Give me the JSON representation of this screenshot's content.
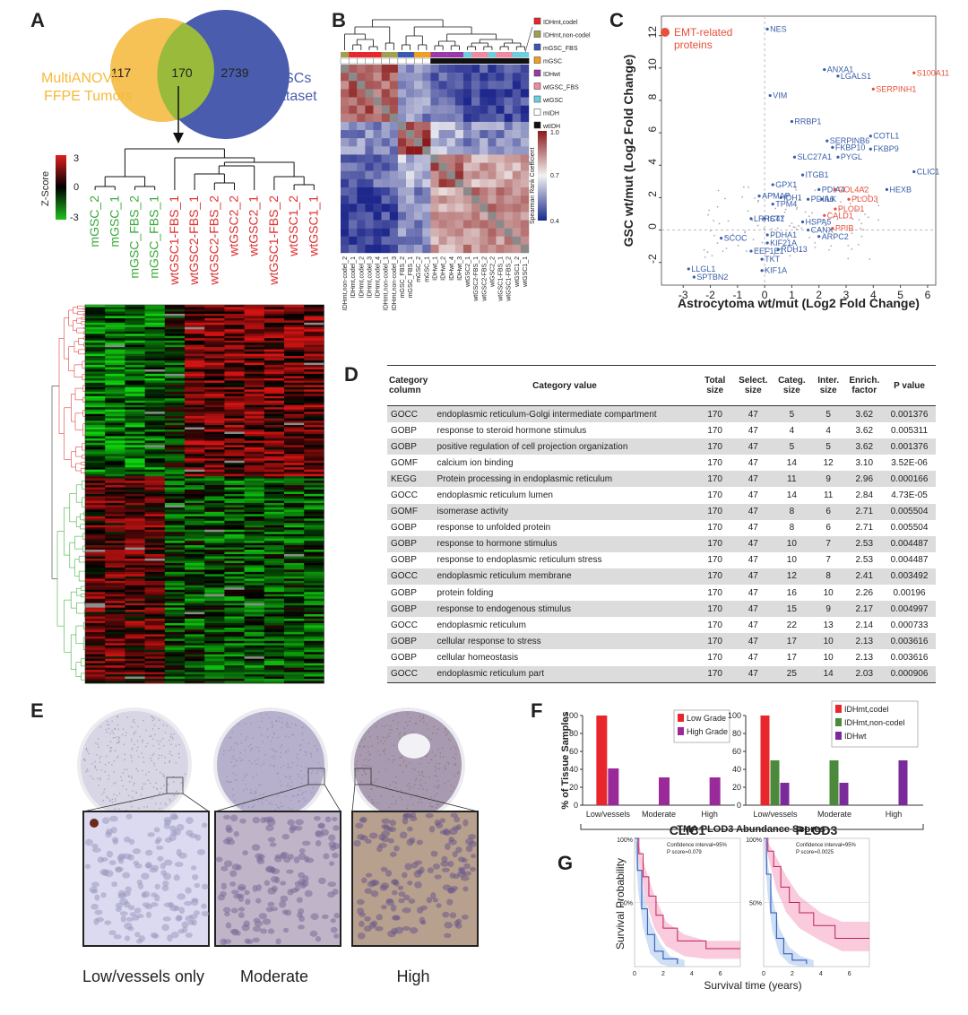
{
  "panel_labels": [
    "A",
    "B",
    "C",
    "D",
    "E",
    "F",
    "G"
  ],
  "venn": {
    "left_label": [
      "MultiANOVA",
      "FFPE Tumors"
    ],
    "right_label": [
      "GSCs",
      "Dataset"
    ],
    "left_only": "117",
    "overlap": "170",
    "right_only": "2739",
    "left_color": "#f6c155",
    "right_color": "#4a5cae",
    "overlap_color": "#9aba3c"
  },
  "zscore": {
    "title": "Z-Score",
    "ticks": [
      "3",
      "0",
      "-3"
    ]
  },
  "heatmap_columns": [
    {
      "label": "mGSC_2",
      "color": "#3aaa3a"
    },
    {
      "label": "mGSC_1",
      "color": "#3aaa3a"
    },
    {
      "label": "mGSC_FBS_2",
      "color": "#3aaa3a"
    },
    {
      "label": "mGSC_FBS_1",
      "color": "#3aaa3a"
    },
    {
      "label": "wtGSC1-FBS_1",
      "color": "#e03030"
    },
    {
      "label": "wtGSC2-FBS_1",
      "color": "#e03030"
    },
    {
      "label": "wtGSC2-FBS_2",
      "color": "#e03030"
    },
    {
      "label": "wtGSC2_2",
      "color": "#e03030"
    },
    {
      "label": "wtGSC2_1",
      "color": "#e03030"
    },
    {
      "label": "wtGSC1-FBS_2",
      "color": "#e03030"
    },
    {
      "label": "wtGSC1_2",
      "color": "#e03030"
    },
    {
      "label": "wtGSC1_1",
      "color": "#e03030"
    }
  ],
  "panelB": {
    "legend": [
      {
        "label": "IDHmt,codel",
        "color": "#e8262c"
      },
      {
        "label": "IDHmt,non-codel",
        "color": "#a0a050"
      },
      {
        "label": "mGSC_FBS",
        "color": "#3a58b0"
      },
      {
        "label": "mGSC",
        "color": "#f0a020"
      },
      {
        "label": "IDHwt",
        "color": "#9a3aa8"
      },
      {
        "label": "wtGSC_FBS",
        "color": "#f08aa0"
      },
      {
        "label": "wtGSC",
        "color": "#6ad0e0"
      },
      {
        "label": "mIDH",
        "color": "#ffffff"
      },
      {
        "label": "wtIDH",
        "color": "#111111"
      }
    ],
    "colorbar_title": "Spearman Rank Coefficient",
    "colorbar_ticks": [
      "1.0",
      "0.7",
      "0.4"
    ],
    "labels": [
      "IDHmt,non-codel_2",
      "IDHmt,codel_1",
      "IDHmt,codel_2",
      "IDHmt,codel_3",
      "IDHmt,codel_4",
      "IDHmt,non-codel_1",
      "IDHmt,non-codel_3",
      "mGSC_FBS_2",
      "mGSC_FBS_1",
      "mGSC_2",
      "mGSC_1",
      "IDHwt_1",
      "IDHwt_2",
      "IDHwt_4",
      "IDHwt_3",
      "wtGSC2_1",
      "wtGSC2-FBS_1",
      "wtGSC2-FBS_2",
      "wtGSC2_2",
      "wtGSC1-FBS_1",
      "wtGSC1-FBS_2",
      "wtGSC1_2",
      "wtGSC1_1"
    ]
  },
  "panelC": {
    "legend": "EMT-related proteins",
    "xlabel": "Astrocytoma wt/mut (Log2 Fold Change)",
    "ylabel": "GSC wt/mut (Log2 Fold Change)",
    "xticks": [
      "-3",
      "-2",
      "-1",
      "0",
      "1",
      "2",
      "3",
      "4",
      "5",
      "6"
    ],
    "yticks": [
      "12",
      "10",
      "8",
      "6",
      "4",
      "2",
      "0",
      "-2"
    ],
    "points": [
      {
        "label": "NES",
        "x": 0.1,
        "y": 12.4,
        "color": "#3a5ea8"
      },
      {
        "label": "ANXA1",
        "x": 2.2,
        "y": 9.9,
        "color": "#3a5ea8"
      },
      {
        "label": "LGALS1",
        "x": 2.7,
        "y": 9.5,
        "color": "#3a5ea8"
      },
      {
        "label": "S100A11",
        "x": 5.5,
        "y": 9.7,
        "color": "#e8503a"
      },
      {
        "label": "SERPINH1",
        "x": 4.0,
        "y": 8.7,
        "color": "#e8503a"
      },
      {
        "label": "VIM",
        "x": 0.2,
        "y": 8.3,
        "color": "#3a5ea8"
      },
      {
        "label": "RRBP1",
        "x": 1.0,
        "y": 6.7,
        "color": "#3a5ea8"
      },
      {
        "label": "COTL1",
        "x": 3.9,
        "y": 5.8,
        "color": "#3a5ea8"
      },
      {
        "label": "SERPINB6",
        "x": 2.3,
        "y": 5.5,
        "color": "#3a5ea8"
      },
      {
        "label": "FKBP10",
        "x": 2.5,
        "y": 5.1,
        "color": "#3a5ea8"
      },
      {
        "label": "FKBP9",
        "x": 3.9,
        "y": 5.0,
        "color": "#3a5ea8"
      },
      {
        "label": "SLC27A1",
        "x": 1.1,
        "y": 4.5,
        "color": "#3a5ea8"
      },
      {
        "label": "PYGL",
        "x": 2.7,
        "y": 4.5,
        "color": "#3a5ea8"
      },
      {
        "label": "CLIC1",
        "x": 5.5,
        "y": 3.6,
        "color": "#3a5ea8"
      },
      {
        "label": "ITGB1",
        "x": 1.4,
        "y": 3.4,
        "color": "#3a5ea8"
      },
      {
        "label": "GPX1",
        "x": 0.3,
        "y": 2.8,
        "color": "#3a5ea8"
      },
      {
        "label": "PDIA4",
        "x": 2.0,
        "y": 2.5,
        "color": "#3a5ea8"
      },
      {
        "label": "HEXB",
        "x": 4.5,
        "y": 2.5,
        "color": "#3a5ea8"
      },
      {
        "label": "COL4A2",
        "x": 2.6,
        "y": 2.5,
        "color": "#e8503a"
      },
      {
        "label": "APMAP",
        "x": -0.2,
        "y": 2.1,
        "color": "#3a5ea8"
      },
      {
        "label": "IDH1",
        "x": 0.6,
        "y": 2.0,
        "color": "#3a5ea8"
      },
      {
        "label": "PDIA6",
        "x": 1.6,
        "y": 1.9,
        "color": "#3a5ea8"
      },
      {
        "label": "ILK",
        "x": 2.1,
        "y": 1.9,
        "color": "#3a5ea8"
      },
      {
        "label": "PLOD3",
        "x": 3.1,
        "y": 1.9,
        "color": "#e8503a"
      },
      {
        "label": "TPM4",
        "x": 0.3,
        "y": 1.6,
        "color": "#3a5ea8"
      },
      {
        "label": "PLOD1",
        "x": 2.6,
        "y": 1.3,
        "color": "#e8503a"
      },
      {
        "label": "CALD1",
        "x": 2.2,
        "y": 0.9,
        "color": "#e8503a"
      },
      {
        "label": "LRRC47",
        "x": -0.5,
        "y": 0.7,
        "color": "#3a5ea8"
      },
      {
        "label": "IST1",
        "x": 0.0,
        "y": 0.7,
        "color": "#3a5ea8"
      },
      {
        "label": "HSPA5",
        "x": 1.4,
        "y": 0.5,
        "color": "#3a5ea8"
      },
      {
        "label": "CANX",
        "x": 1.6,
        "y": 0.0,
        "color": "#3a5ea8"
      },
      {
        "label": "PPIB",
        "x": 2.5,
        "y": 0.1,
        "color": "#e8503a"
      },
      {
        "label": "PDHA1",
        "x": 0.1,
        "y": -0.3,
        "color": "#3a5ea8"
      },
      {
        "label": "ARPC2",
        "x": 2.0,
        "y": -0.4,
        "color": "#3a5ea8"
      },
      {
        "label": "SCOC",
        "x": -1.6,
        "y": -0.5,
        "color": "#3a5ea8"
      },
      {
        "label": "KIF21A",
        "x": 0.1,
        "y": -0.8,
        "color": "#3a5ea8"
      },
      {
        "label": "EEF1E1",
        "x": -0.5,
        "y": -1.3,
        "color": "#3a5ea8"
      },
      {
        "label": "RDH13",
        "x": 0.5,
        "y": -1.2,
        "color": "#3a5ea8"
      },
      {
        "label": "TKT",
        "x": -0.1,
        "y": -1.8,
        "color": "#3a5ea8"
      },
      {
        "label": "LLGL1",
        "x": -2.8,
        "y": -2.4,
        "color": "#3a5ea8"
      },
      {
        "label": "KIF1A",
        "x": -0.1,
        "y": -2.5,
        "color": "#3a5ea8"
      },
      {
        "label": "SPTBN2",
        "x": -2.6,
        "y": -2.9,
        "color": "#3a5ea8"
      }
    ]
  },
  "panelD": {
    "headers": [
      "Category column",
      "Category value",
      "Total size",
      "Select. size",
      "Categ. size",
      "Inter. size",
      "Enrich. factor",
      "P value"
    ],
    "rows": [
      [
        "GOCC",
        "endoplasmic reticulum-Golgi intermediate compartment",
        "170",
        "47",
        "5",
        "5",
        "3.62",
        "0.001376"
      ],
      [
        "GOBP",
        "response to steroid hormone stimulus",
        "170",
        "47",
        "4",
        "4",
        "3.62",
        "0.005311"
      ],
      [
        "GOBP",
        "positive regulation of cell projection organization",
        "170",
        "47",
        "5",
        "5",
        "3.62",
        "0.001376"
      ],
      [
        "GOMF",
        "calcium ion binding",
        "170",
        "47",
        "14",
        "12",
        "3.10",
        "3.52E-06"
      ],
      [
        "KEGG",
        "Protein processing in endoplasmic reticulum",
        "170",
        "47",
        "11",
        "9",
        "2.96",
        "0.000166"
      ],
      [
        "GOCC",
        "endoplasmic reticulum lumen",
        "170",
        "47",
        "14",
        "11",
        "2.84",
        "4.73E-05"
      ],
      [
        "GOMF",
        "isomerase activity",
        "170",
        "47",
        "8",
        "6",
        "2.71",
        "0.005504"
      ],
      [
        "GOBP",
        "response to unfolded protein",
        "170",
        "47",
        "8",
        "6",
        "2.71",
        "0.005504"
      ],
      [
        "GOBP",
        "response to hormone stimulus",
        "170",
        "47",
        "10",
        "7",
        "2.53",
        "0.004487"
      ],
      [
        "GOBP",
        "response to endoplasmic reticulum stress",
        "170",
        "47",
        "10",
        "7",
        "2.53",
        "0.004487"
      ],
      [
        "GOCC",
        "endoplasmic reticulum membrane",
        "170",
        "47",
        "12",
        "8",
        "2.41",
        "0.003492"
      ],
      [
        "GOBP",
        "protein folding",
        "170",
        "47",
        "16",
        "10",
        "2.26",
        "0.00196"
      ],
      [
        "GOBP",
        "response to endogenous stimulus",
        "170",
        "47",
        "15",
        "9",
        "2.17",
        "0.004997"
      ],
      [
        "GOCC",
        "endoplasmic reticulum",
        "170",
        "47",
        "22",
        "13",
        "2.14",
        "0.000733"
      ],
      [
        "GOBP",
        "cellular response to stress",
        "170",
        "47",
        "17",
        "10",
        "2.13",
        "0.003616"
      ],
      [
        "GOBP",
        "cellular homeostasis",
        "170",
        "47",
        "17",
        "10",
        "2.13",
        "0.003616"
      ],
      [
        "GOCC",
        "endoplasmic reticulum part",
        "170",
        "47",
        "25",
        "14",
        "2.03",
        "0.000906"
      ]
    ]
  },
  "panelE": {
    "labels": [
      "Low/vessels only",
      "Moderate",
      "High"
    ]
  },
  "chart_data": [
    {
      "type": "bar",
      "ylabel": "% of Tissue Samples",
      "xlabel": "TMA PLOD3 Abundance Scores",
      "categories": [
        "Low/vessels",
        "Moderate",
        "High"
      ],
      "ylim": [
        0,
        100
      ],
      "yticks": [
        "0",
        "20",
        "40",
        "60",
        "80",
        "100"
      ],
      "series": [
        {
          "name": "Low Grade",
          "color": "#e8262c",
          "values": [
            100,
            0,
            0
          ]
        },
        {
          "name": "High Grade",
          "color": "#9a2a9a",
          "values": [
            41,
            31,
            31
          ]
        }
      ]
    },
    {
      "type": "bar",
      "categories": [
        "Low/vessels",
        "Moderate",
        "High"
      ],
      "ylim": [
        0,
        100
      ],
      "yticks": [
        "0",
        "20",
        "40",
        "60",
        "80",
        "100"
      ],
      "series": [
        {
          "name": "IDHmt,codel",
          "color": "#e8262c",
          "values": [
            100,
            0,
            0
          ]
        },
        {
          "name": "IDHmt,non-codel",
          "color": "#4a8a3a",
          "values": [
            50,
            50,
            0
          ]
        },
        {
          "name": "IDHwt",
          "color": "#7a2a9a",
          "values": [
            25,
            25,
            50
          ]
        }
      ]
    },
    {
      "type": "line",
      "title": "CLIC1",
      "note1": "Confidence interval=95%",
      "note2": "P score=0.079",
      "ylabel": "Survival Probability",
      "xticks": [
        "0",
        "2",
        "4",
        "6"
      ],
      "yticks": [
        "100%",
        "50%"
      ]
    },
    {
      "type": "line",
      "title": "PLOD3",
      "note1": "Confidence interval=95%",
      "note2": "P score=0.0025",
      "xlabel": "Survival time (years)",
      "xticks": [
        "0",
        "2",
        "4",
        "6"
      ],
      "yticks": [
        "100%",
        "50%"
      ]
    }
  ]
}
